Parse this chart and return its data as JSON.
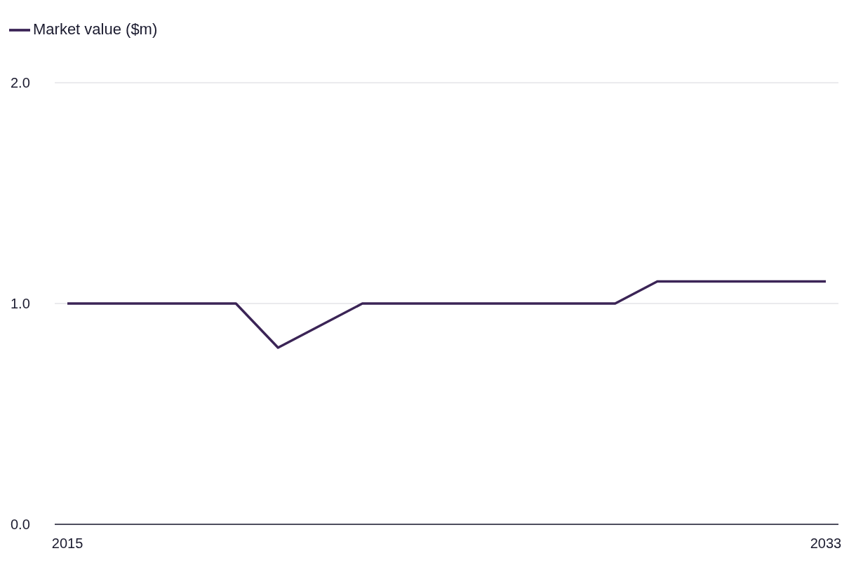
{
  "chart_data": {
    "type": "line",
    "x": [
      2015,
      2016,
      2017,
      2018,
      2019,
      2020,
      2021,
      2022,
      2023,
      2024,
      2025,
      2026,
      2027,
      2028,
      2029,
      2030,
      2031,
      2032,
      2033
    ],
    "series": [
      {
        "name": "Market value ($m)",
        "color": "#3b2456",
        "values": [
          1.0,
          1.0,
          1.0,
          1.0,
          1.0,
          0.8,
          0.9,
          1.0,
          1.0,
          1.0,
          1.0,
          1.0,
          1.0,
          1.0,
          1.1,
          1.1,
          1.1,
          1.1,
          1.1
        ]
      }
    ],
    "xlim": [
      2014.7,
      2033.3
    ],
    "xticks": [
      2015,
      2033
    ],
    "ylim": [
      0,
      2
    ],
    "yticks": [
      {
        "value": 0,
        "label": "0.0"
      },
      {
        "value": 1,
        "label": "1.0"
      },
      {
        "value": 2,
        "label": "2.0"
      }
    ],
    "grid": "y",
    "legend": "top left",
    "marker": "none",
    "line_style": "solid"
  }
}
